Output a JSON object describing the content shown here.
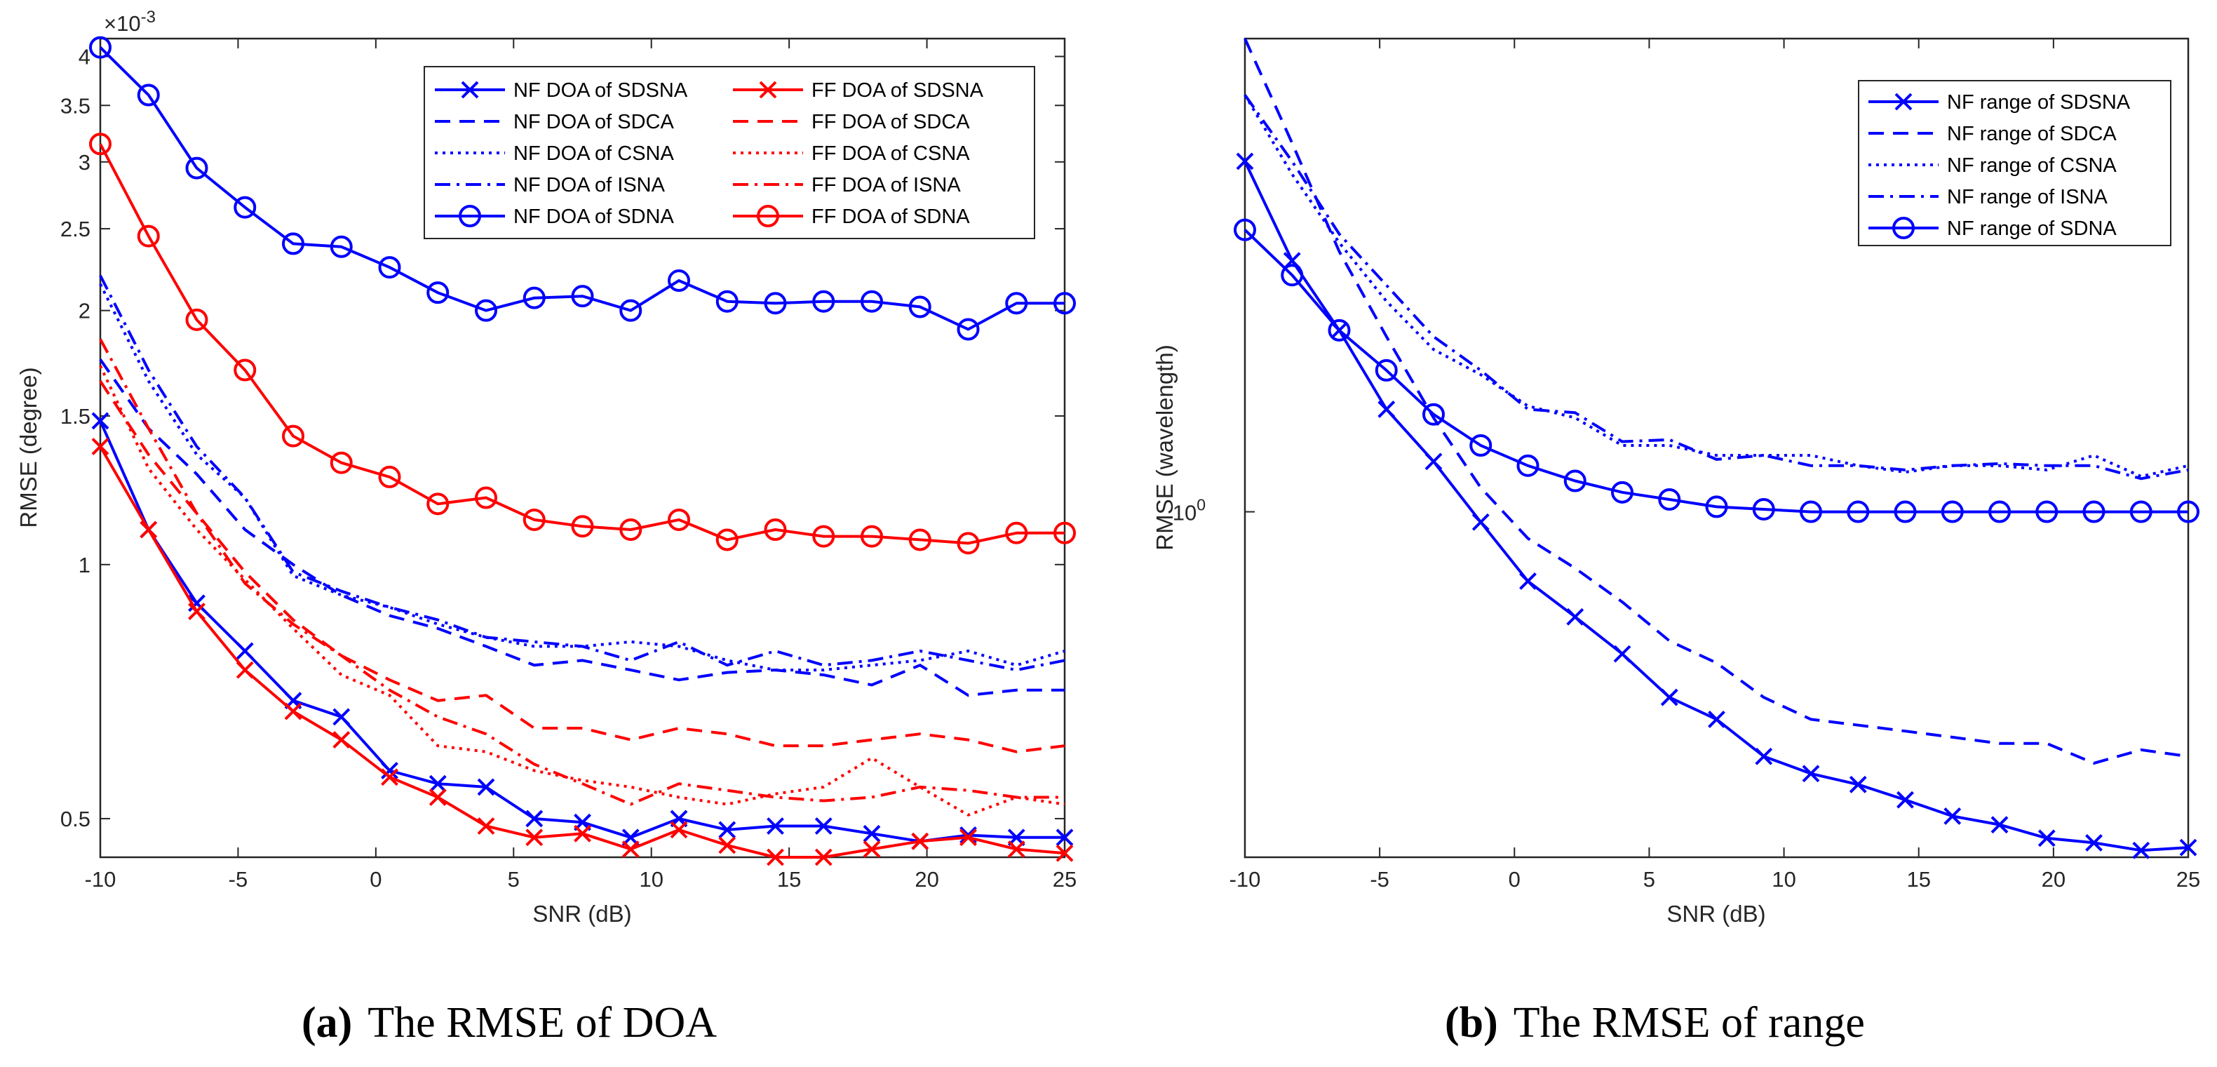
{
  "colors": {
    "blue": "#0000ff",
    "red": "#ff0000",
    "axis": "#262626"
  },
  "chart_data": [
    {
      "type": "line",
      "panel_label": "(a)",
      "caption": "The RMSE of DOA",
      "xlabel": "SNR (dB)",
      "ylabel": "RMSE (degree)",
      "yscale": "log",
      "exponent_label": "×10-3",
      "xlim": [
        -10,
        25
      ],
      "ylim": [
        0.45,
        4.2
      ],
      "xticks": [
        -10,
        -5,
        0,
        5,
        10,
        15,
        20,
        25
      ],
      "yticks": [
        0.5,
        1,
        1.5,
        2,
        2.5,
        3,
        3.5,
        4
      ],
      "x": [
        -10,
        -8.25,
        -6.5,
        -4.75,
        -3,
        -1.25,
        0.5,
        2.25,
        4,
        5.75,
        7.5,
        9.25,
        11,
        12.75,
        14.5,
        16.25,
        18,
        19.75,
        21.5,
        23.25,
        25
      ],
      "legend": "top-right, two columns",
      "series": [
        {
          "name": "NF DOA of SDSNA",
          "color": "blue",
          "dash": "solid",
          "marker": "x",
          "values": [
            1.48,
            1.1,
            0.9,
            0.79,
            0.69,
            0.66,
            0.57,
            0.55,
            0.545,
            0.5,
            0.495,
            0.475,
            0.5,
            0.485,
            0.49,
            0.49,
            0.48,
            0.47,
            0.478,
            0.475,
            0.475
          ]
        },
        {
          "name": "NF DOA of SDCA",
          "color": "blue",
          "dash": "dash",
          "marker": "none",
          "values": [
            1.75,
            1.45,
            1.28,
            1.1,
            1.0,
            0.92,
            0.87,
            0.84,
            0.8,
            0.76,
            0.77,
            0.75,
            0.73,
            0.745,
            0.75,
            0.74,
            0.72,
            0.76,
            0.7,
            0.71,
            0.71
          ]
        },
        {
          "name": "NF DOA of CSNA",
          "color": "blue",
          "dash": "dot",
          "marker": "none",
          "values": [
            2.15,
            1.65,
            1.35,
            1.2,
            0.97,
            0.92,
            0.89,
            0.85,
            0.82,
            0.8,
            0.8,
            0.81,
            0.8,
            0.77,
            0.75,
            0.75,
            0.76,
            0.77,
            0.79,
            0.76,
            0.79
          ]
        },
        {
          "name": "NF DOA of ISNA",
          "color": "blue",
          "dash": "dashdot",
          "marker": "none",
          "values": [
            2.2,
            1.7,
            1.38,
            1.2,
            0.98,
            0.93,
            0.89,
            0.86,
            0.82,
            0.81,
            0.8,
            0.77,
            0.81,
            0.76,
            0.79,
            0.76,
            0.77,
            0.79,
            0.77,
            0.75,
            0.77
          ]
        },
        {
          "name": "NF DOA of SDNA",
          "color": "blue",
          "dash": "solid",
          "marker": "o",
          "values": [
            4.1,
            3.6,
            2.95,
            2.65,
            2.4,
            2.38,
            2.25,
            2.1,
            2.0,
            2.07,
            2.08,
            2.0,
            2.17,
            2.05,
            2.04,
            2.05,
            2.05,
            2.02,
            1.9,
            2.04,
            2.04
          ]
        },
        {
          "name": "FF DOA of SDSNA",
          "color": "red",
          "dash": "solid",
          "marker": "x",
          "values": [
            1.38,
            1.1,
            0.88,
            0.75,
            0.67,
            0.62,
            0.56,
            0.53,
            0.49,
            0.475,
            0.48,
            0.46,
            0.485,
            0.465,
            0.45,
            0.45,
            0.46,
            0.47,
            0.475,
            0.46,
            0.455
          ]
        },
        {
          "name": "FF DOA of SDCA",
          "color": "red",
          "dash": "dash",
          "marker": "none",
          "values": [
            1.65,
            1.35,
            1.15,
            0.98,
            0.86,
            0.78,
            0.73,
            0.69,
            0.7,
            0.64,
            0.64,
            0.62,
            0.64,
            0.63,
            0.61,
            0.61,
            0.62,
            0.63,
            0.62,
            0.6,
            0.61
          ]
        },
        {
          "name": "FF DOA of CSNA",
          "color": "red",
          "dash": "dot",
          "marker": "none",
          "values": [
            1.72,
            1.3,
            1.1,
            0.96,
            0.84,
            0.74,
            0.7,
            0.61,
            0.6,
            0.57,
            0.555,
            0.545,
            0.53,
            0.52,
            0.535,
            0.545,
            0.59,
            0.545,
            0.505,
            0.53,
            0.52
          ]
        },
        {
          "name": "FF DOA of ISNA",
          "color": "red",
          "dash": "dashdot",
          "marker": "none",
          "values": [
            1.85,
            1.45,
            1.15,
            0.95,
            0.85,
            0.78,
            0.71,
            0.66,
            0.63,
            0.58,
            0.55,
            0.52,
            0.55,
            0.54,
            0.53,
            0.525,
            0.53,
            0.545,
            0.54,
            0.53,
            0.53
          ]
        },
        {
          "name": "FF DOA of SDNA",
          "color": "red",
          "dash": "solid",
          "marker": "o",
          "values": [
            3.15,
            2.45,
            1.95,
            1.7,
            1.42,
            1.32,
            1.27,
            1.18,
            1.2,
            1.13,
            1.11,
            1.1,
            1.13,
            1.07,
            1.1,
            1.08,
            1.08,
            1.07,
            1.06,
            1.09,
            1.09
          ]
        }
      ]
    },
    {
      "type": "line",
      "panel_label": "(b)",
      "caption": "The RMSE of range",
      "xlabel": "SNR (dB)",
      "ylabel": "RMSE (wavelength)",
      "yscale": "log",
      "xlim": [
        -10,
        25
      ],
      "ylim": [
        0.255,
        6.5
      ],
      "xticks": [
        -10,
        -5,
        0,
        5,
        10,
        15,
        20,
        25
      ],
      "ytick_labels": [
        {
          "value": 1,
          "base": "10",
          "exp": "0"
        }
      ],
      "x": [
        -10,
        -8.25,
        -6.5,
        -4.75,
        -3,
        -1.25,
        0.5,
        2.25,
        4,
        5.75,
        7.5,
        9.25,
        11,
        12.75,
        14.5,
        16.25,
        18,
        19.75,
        21.5,
        23.25,
        25
      ],
      "legend": "top-right",
      "series": [
        {
          "name": "NF range of SDSNA",
          "color": "blue",
          "dash": "solid",
          "marker": "x",
          "values": [
            4.0,
            2.7,
            2.05,
            1.5,
            1.22,
            0.96,
            0.76,
            0.66,
            0.57,
            0.48,
            0.44,
            0.38,
            0.355,
            0.34,
            0.32,
            0.3,
            0.29,
            0.275,
            0.27,
            0.262,
            0.265
          ]
        },
        {
          "name": "NF range of SDCA",
          "color": "blue",
          "dash": "dash",
          "marker": "none",
          "values": [
            6.5,
            4.3,
            2.8,
            2.0,
            1.45,
            1.1,
            0.9,
            0.8,
            0.7,
            0.6,
            0.55,
            0.48,
            0.44,
            0.43,
            0.42,
            0.41,
            0.4,
            0.4,
            0.37,
            0.39,
            0.38
          ]
        },
        {
          "name": "NF range of CSNA",
          "color": "blue",
          "dash": "dot",
          "marker": "none",
          "values": [
            5.2,
            3.8,
            2.9,
            2.3,
            1.9,
            1.72,
            1.52,
            1.45,
            1.3,
            1.3,
            1.25,
            1.25,
            1.25,
            1.2,
            1.17,
            1.2,
            1.2,
            1.18,
            1.25,
            1.15,
            1.2
          ]
        },
        {
          "name": "NF range of ISNA",
          "color": "blue",
          "dash": "dashdot",
          "marker": "none",
          "values": [
            5.2,
            4.0,
            3.0,
            2.45,
            2.0,
            1.75,
            1.5,
            1.48,
            1.32,
            1.33,
            1.23,
            1.25,
            1.2,
            1.2,
            1.18,
            1.2,
            1.21,
            1.2,
            1.2,
            1.14,
            1.18
          ]
        },
        {
          "name": "NF range of SDNA",
          "color": "blue",
          "dash": "solid",
          "marker": "o",
          "values": [
            3.05,
            2.55,
            2.05,
            1.75,
            1.47,
            1.3,
            1.2,
            1.13,
            1.08,
            1.05,
            1.02,
            1.01,
            1.0,
            1.0,
            1.0,
            1.0,
            1.0,
            1.0,
            1.0,
            1.0,
            1.0
          ]
        }
      ]
    }
  ]
}
